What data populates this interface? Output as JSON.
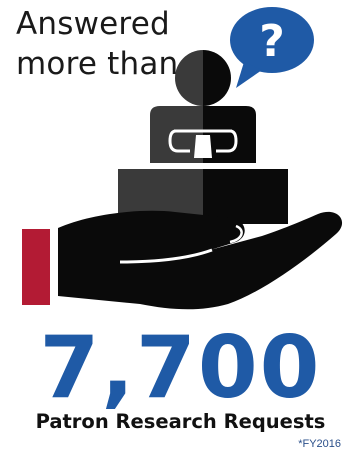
{
  "headline": {
    "line1": "Answered",
    "line2": "more than"
  },
  "speech_bubble": {
    "symbol": "?"
  },
  "stat": {
    "value": "7,700",
    "label": "Patron Research Requests",
    "footnote": "*FY2016"
  },
  "icons": {
    "bubble": "question-speech-bubble-icon",
    "person": "librarian-person-icon",
    "box": "box-icon",
    "hand": "open-hand-icon",
    "cuff": "sleeve-cuff-icon"
  },
  "colors": {
    "number_blue": "#1f5aa6",
    "bubble_blue": "#1f5aa6",
    "cuff_red": "#b31b34",
    "dark": "#0a0a0a",
    "mid_gray": "#3a3a3a",
    "text": "#111111"
  }
}
